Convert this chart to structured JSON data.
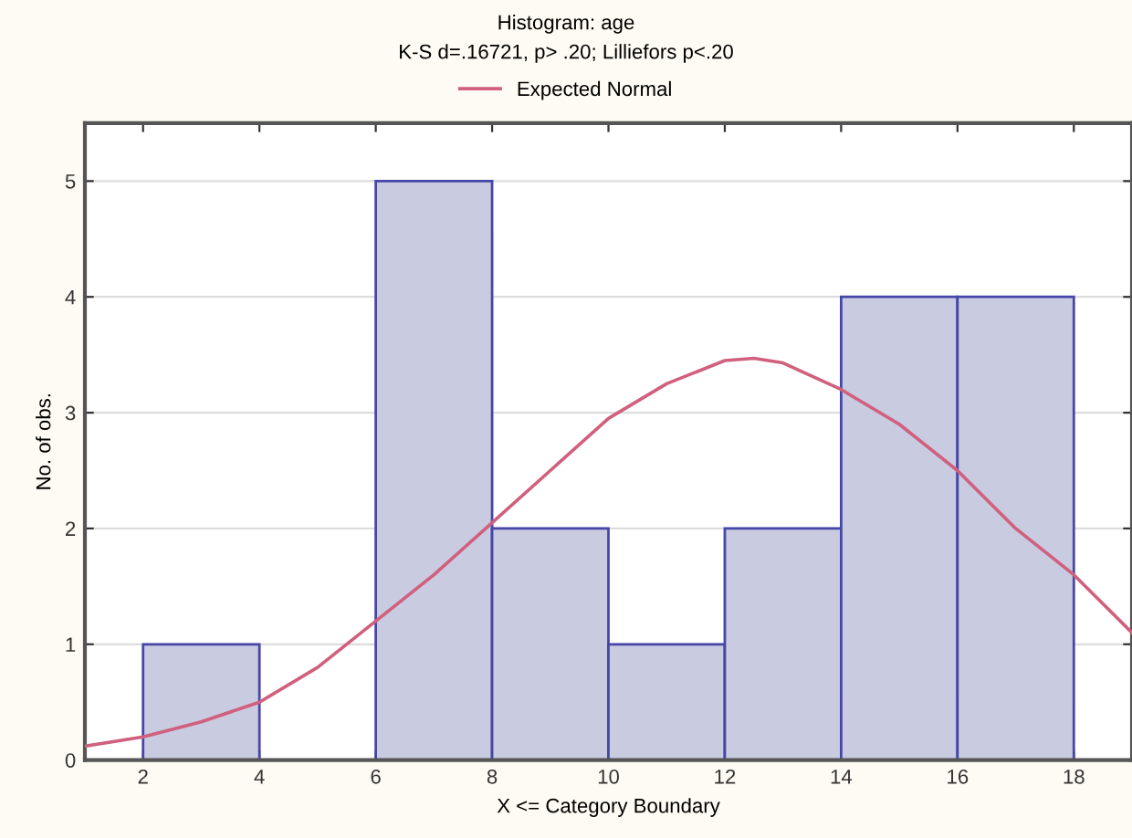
{
  "chart_data": {
    "type": "histogram",
    "title": "Histogram: age",
    "subtitle": "K-S d=.16721, p> .20; Lilliefors p<.20",
    "xlabel": "X <= Category Boundary",
    "ylabel": "No. of obs.",
    "bins": [
      2,
      4,
      6,
      8,
      10,
      12,
      14,
      16,
      18
    ],
    "values": [
      1,
      0,
      5,
      2,
      1,
      2,
      4,
      4
    ],
    "color": "#c9cbe0",
    "series": [
      {
        "name": "Expected Normal",
        "type": "line",
        "color": "#d0607e",
        "x": [
          1,
          2,
          3,
          4,
          5,
          6,
          7,
          8,
          9,
          10,
          11,
          12,
          12.5,
          13,
          14,
          15,
          16,
          17,
          18,
          19
        ],
        "values": [
          0.12,
          0.2,
          0.33,
          0.5,
          0.8,
          1.2,
          1.6,
          2.05,
          2.5,
          2.95,
          3.25,
          3.45,
          3.47,
          3.43,
          3.2,
          2.9,
          2.5,
          2.0,
          1.6,
          1.1
        ]
      }
    ],
    "xlim": [
      1,
      19
    ],
    "ylim": [
      0,
      5.5
    ],
    "xticks": [
      2,
      4,
      6,
      8,
      10,
      12,
      14,
      16,
      18
    ],
    "yticks": [
      0,
      1,
      2,
      3,
      4,
      5
    ],
    "grid": "y",
    "legend": "top"
  }
}
